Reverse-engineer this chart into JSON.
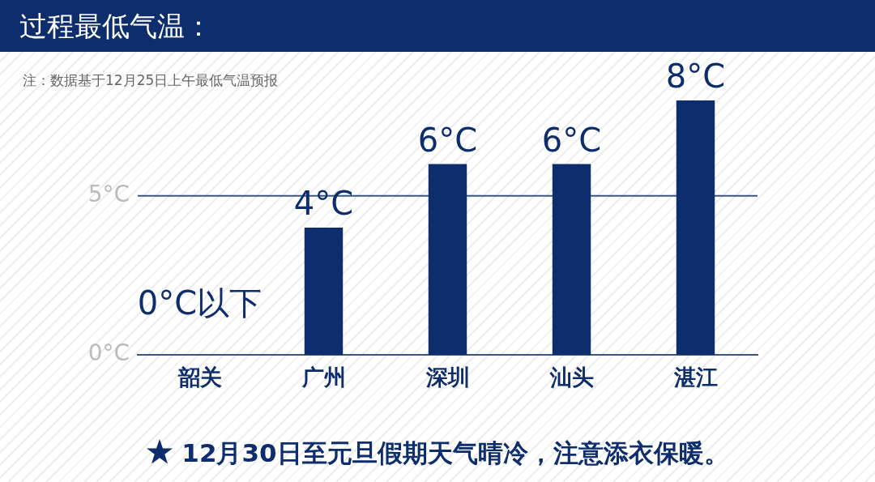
{
  "chart_data": {
    "type": "bar",
    "title": "过程最低气温：",
    "subtitle": "注：数据基于12月25日上午最低气温预报",
    "categories": [
      "韶关",
      "广州",
      "深圳",
      "汕头",
      "湛江"
    ],
    "values": [
      null,
      4,
      6,
      6,
      8
    ],
    "value_labels": [
      "0°C以下",
      "4°C",
      "6°C",
      "6°C",
      "8°C"
    ],
    "color": "#0d2d6c",
    "ylim": [
      0,
      8
    ],
    "yticks": [
      {
        "value": 0,
        "label": "0°C"
      },
      {
        "value": 5,
        "label": "5°C"
      }
    ],
    "ref_lines": [
      {
        "axis": "y",
        "value": 5,
        "color": "#3b567f"
      }
    ],
    "annotations": [
      "12月30日至元旦假期天气晴冷，注意添衣保暖。"
    ]
  }
}
